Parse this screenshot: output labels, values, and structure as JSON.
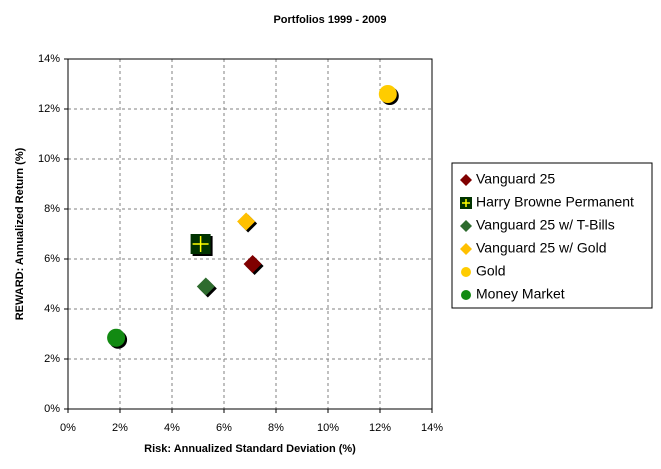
{
  "chart_data": {
    "type": "scatter",
    "title": "Portfolios 1999 - 2009",
    "x_label": "Risk: Annualized Standard Deviation (%)",
    "y_label": "REWARD: Annualized Return (%)",
    "xlim": [
      0,
      14
    ],
    "ylim": [
      0,
      14
    ],
    "xticks": [
      {
        "value": 0,
        "label": "0%"
      },
      {
        "value": 2,
        "label": "2%"
      },
      {
        "value": 4,
        "label": "4%"
      },
      {
        "value": 6,
        "label": "6%"
      },
      {
        "value": 8,
        "label": "8%"
      },
      {
        "value": 10,
        "label": "10%"
      },
      {
        "value": 12,
        "label": "12%"
      },
      {
        "value": 14,
        "label": "14%"
      }
    ],
    "yticks": [
      {
        "value": 0,
        "label": "0%"
      },
      {
        "value": 2,
        "label": "2%"
      },
      {
        "value": 4,
        "label": "4%"
      },
      {
        "value": 6,
        "label": "6%"
      },
      {
        "value": 8,
        "label": "8%"
      },
      {
        "value": 10,
        "label": "10%"
      },
      {
        "value": 12,
        "label": "12%"
      },
      {
        "value": 14,
        "label": "14%"
      }
    ],
    "grid": true,
    "legend": "right",
    "series": [
      {
        "name": "Vanguard 25",
        "color": "#800000",
        "marker": "diamond",
        "x": [
          7.1
        ],
        "values": [
          5.8
        ]
      },
      {
        "name": "Harry Browne Permanent",
        "color": "#003300",
        "marker": "plus-square",
        "x": [
          5.1
        ],
        "values": [
          6.6
        ]
      },
      {
        "name": "Vanguard 25 w/ T-Bills",
        "color": "#2e6b2e",
        "marker": "diamond",
        "x": [
          5.3
        ],
        "values": [
          4.9
        ]
      },
      {
        "name": "Vanguard 25 w/ Gold",
        "color": "#ffc000",
        "marker": "diamond",
        "x": [
          6.85
        ],
        "values": [
          7.5
        ]
      },
      {
        "name": "Gold",
        "color": "#ffcc00",
        "marker": "circle",
        "x": [
          12.3
        ],
        "values": [
          12.6
        ]
      },
      {
        "name": "Money Market",
        "color": "#128a12",
        "marker": "circle",
        "x": [
          1.85
        ],
        "values": [
          2.85
        ]
      }
    ]
  }
}
